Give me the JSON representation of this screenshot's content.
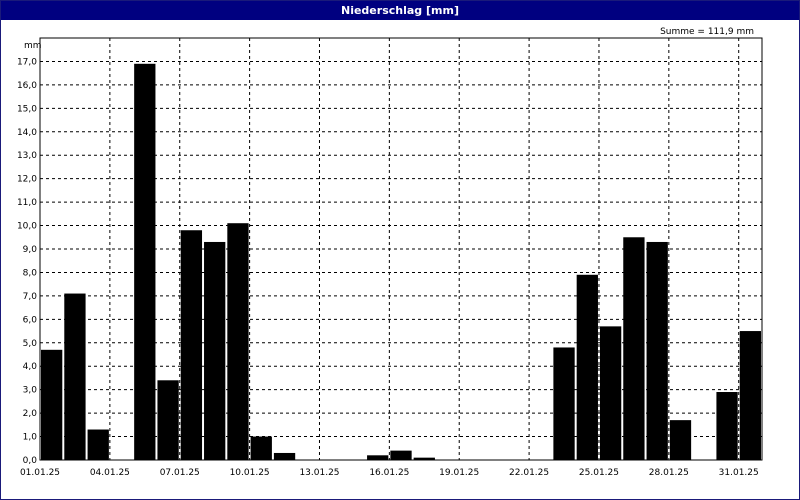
{
  "window": {
    "title": "Niederschlag [mm]"
  },
  "chart_data": {
    "type": "bar",
    "title": "Niederschlag [mm]",
    "ylabel": "mm",
    "summary": "Summe = 111,9 mm",
    "ylim": [
      0,
      18
    ],
    "grid": true,
    "yticks": [
      "0,0",
      "1,0",
      "2,0",
      "3,0",
      "4,0",
      "5,0",
      "6,0",
      "7,0",
      "8,0",
      "9,0",
      "10,0",
      "11,0",
      "12,0",
      "13,0",
      "14,0",
      "15,0",
      "16,0",
      "17,0"
    ],
    "xtick_labels": [
      "01.01.25",
      "04.01.25",
      "07.01.25",
      "10.01.25",
      "13.01.25",
      "16.01.25",
      "19.01.25",
      "22.01.25",
      "25.01.25",
      "28.01.25",
      "31.01.25"
    ],
    "categories": [
      "01.01.25",
      "02.01.25",
      "03.01.25",
      "04.01.25",
      "05.01.25",
      "06.01.25",
      "07.01.25",
      "08.01.25",
      "09.01.25",
      "10.01.25",
      "11.01.25",
      "12.01.25",
      "13.01.25",
      "14.01.25",
      "15.01.25",
      "16.01.25",
      "17.01.25",
      "18.01.25",
      "19.01.25",
      "20.01.25",
      "21.01.25",
      "22.01.25",
      "23.01.25",
      "24.01.25",
      "25.01.25",
      "26.01.25",
      "27.01.25",
      "28.01.25",
      "29.01.25",
      "30.01.25",
      "31.01.25"
    ],
    "values": [
      4.7,
      7.1,
      1.3,
      0,
      16.9,
      3.4,
      9.8,
      9.3,
      10.1,
      1.0,
      0.3,
      0,
      0,
      0,
      0.2,
      0.4,
      0.1,
      0,
      0,
      0,
      0,
      0,
      4.8,
      7.9,
      5.7,
      9.5,
      9.3,
      1.7,
      0,
      2.9,
      5.5
    ],
    "bar_color": "#000000",
    "grid_color": "#000000",
    "title_bar_color": "#000080"
  }
}
